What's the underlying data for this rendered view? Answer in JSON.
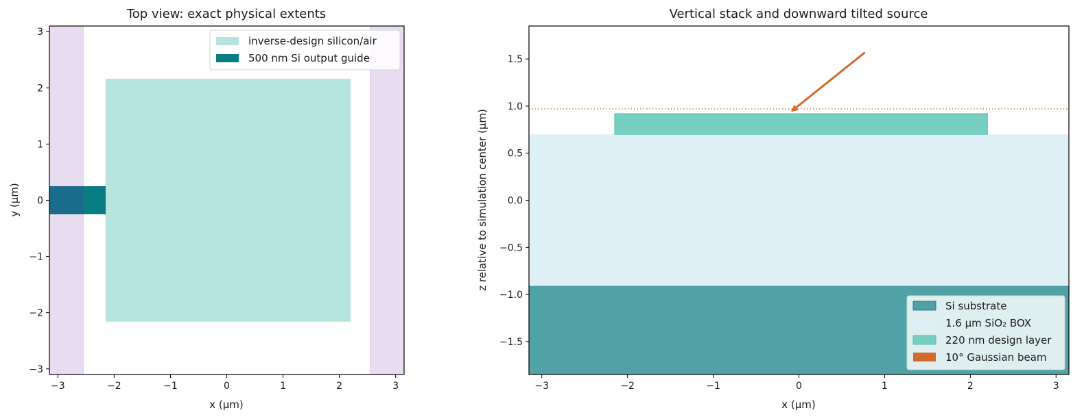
{
  "chart_data": [
    {
      "type": "area",
      "title": "Top view: exact physical extents",
      "xlabel": "x (µm)",
      "ylabel": "y (µm)",
      "xlim": [
        -3.15,
        3.15
      ],
      "ylim": [
        -3.1,
        3.1
      ],
      "xticks": [
        -3,
        -2,
        -1,
        0,
        1,
        2,
        3
      ],
      "yticks": [
        -3,
        -2,
        -1,
        0,
        1,
        2,
        3
      ],
      "legend_position": "upper-right",
      "grid": false,
      "regions": [
        {
          "name": "left-absorbing-region",
          "x": [
            -3.15,
            -2.55
          ],
          "y": [
            -3.1,
            3.1
          ],
          "color": "#e8dcf0",
          "edge": "#d7c2ea"
        },
        {
          "name": "right-absorbing-region",
          "x": [
            2.55,
            3.15
          ],
          "y": [
            -3.1,
            3.1
          ],
          "color": "#e8dcf0",
          "edge": "#d7c2ea"
        },
        {
          "name": "design-region",
          "label": "inverse-design silicon/air",
          "x": [
            -2.15,
            2.2
          ],
          "y": [
            -2.16,
            2.16
          ],
          "color": "#b6e4de"
        },
        {
          "name": "output-waveguide",
          "label": "500 nm Si output guide",
          "x": [
            -3.15,
            -2.15
          ],
          "y": [
            -0.25,
            0.25
          ],
          "color": "#0a7d82"
        },
        {
          "name": "waveguide-in-absorber",
          "x": [
            -3.15,
            -2.55
          ],
          "y": [
            -0.25,
            0.25
          ],
          "color": "#1b6b8a"
        }
      ],
      "legend": [
        "inverse-design silicon/air",
        "500 nm Si output guide"
      ]
    },
    {
      "type": "area",
      "title": "Vertical stack and downward tilted source",
      "xlabel": "x (µm)",
      "ylabel": "z relative to simulation center (µm)",
      "xlim": [
        -3.15,
        3.15
      ],
      "ylim": [
        -1.85,
        1.85
      ],
      "xticks": [
        -3,
        -2,
        -1,
        0,
        1,
        2,
        3
      ],
      "yticks": [
        1.5,
        1.0,
        0.5,
        0.0,
        -0.5,
        -1.0,
        -1.5
      ],
      "ytick_labels": [
        "1.5",
        "1.0",
        "0.5",
        "0.0",
        "−0.5",
        "−1.0",
        "−1.5"
      ],
      "legend_position": "lower-right",
      "grid": false,
      "regions": [
        {
          "name": "si-substrate",
          "label": "Si substrate",
          "x": [
            -3.15,
            3.15
          ],
          "y": [
            -1.85,
            -0.91
          ],
          "color": "#50a2a7",
          "edge": "#2f7f86"
        },
        {
          "name": "sio2-box",
          "label": "1.6 µm SiO₂ BOX",
          "x": [
            -3.15,
            3.15
          ],
          "y": [
            -0.91,
            0.7
          ],
          "color": "#dff0f6"
        },
        {
          "name": "design-layer",
          "label": "220 nm design layer",
          "x": [
            -2.15,
            2.2
          ],
          "y": [
            0.7,
            0.92
          ],
          "color": "#76cfc1",
          "edge": "#5bbfb0"
        }
      ],
      "source_line_z": 0.97,
      "beam_arrow": {
        "from": [
          0.77,
          1.57
        ],
        "to": [
          -0.08,
          0.95
        ],
        "color": "#d26a2e"
      },
      "legend": [
        "Si substrate",
        "1.6 µm SiO₂ BOX",
        "220 nm design layer",
        "10° Gaussian beam"
      ],
      "legend_colors": [
        "#50a2a7",
        "#dff0f6",
        "#76cfc1",
        "#d26a2e"
      ]
    }
  ]
}
